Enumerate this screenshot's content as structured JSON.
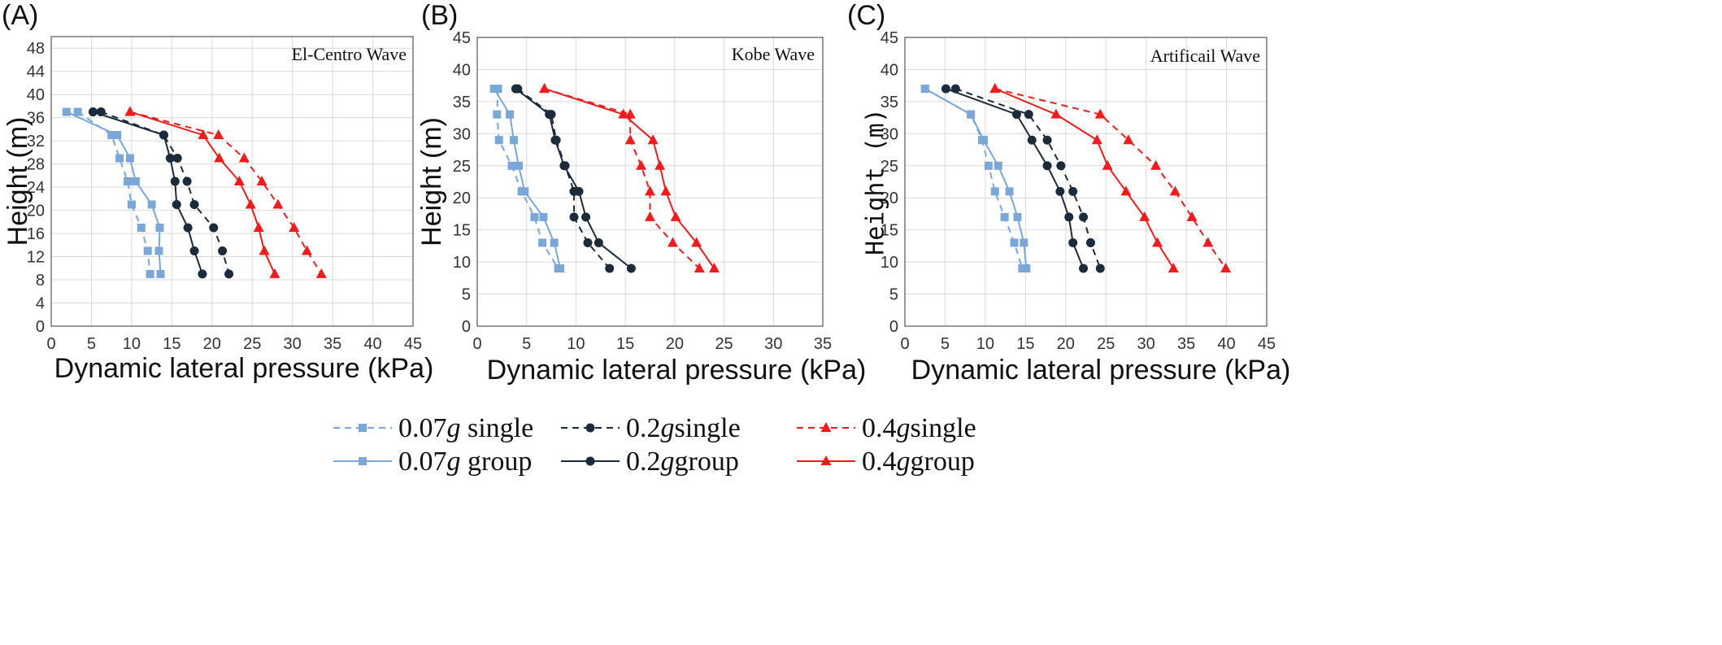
{
  "series_styles": [
    {
      "key": "s007_single",
      "color": "#7aa7d8",
      "dash": true,
      "marker": "square"
    },
    {
      "key": "s007_group",
      "color": "#7aa7d8",
      "dash": false,
      "marker": "square"
    },
    {
      "key": "s02_single",
      "color": "#1c2b3c",
      "dash": true,
      "marker": "circle"
    },
    {
      "key": "s02_group",
      "color": "#1c2b3c",
      "dash": false,
      "marker": "circle"
    },
    {
      "key": "s04_single",
      "color": "#ee1c1c",
      "dash": true,
      "marker": "triangle"
    },
    {
      "key": "s04_group",
      "color": "#ee1c1c",
      "dash": false,
      "marker": "triangle"
    }
  ],
  "legend": [
    {
      "key": "s007_single",
      "prefix": "0.07",
      "g": "g",
      "suffix": " single"
    },
    {
      "key": "s02_single",
      "prefix": "0.2",
      "g": "g",
      "suffix": "single"
    },
    {
      "key": "s04_single",
      "prefix": "0.4",
      "g": "g",
      "suffix": "single"
    },
    {
      "key": "s007_group",
      "prefix": "0.07",
      "g": "g",
      "suffix": " group"
    },
    {
      "key": "s02_group",
      "prefix": "0.2",
      "g": "g",
      "suffix": "group"
    },
    {
      "key": "s04_group",
      "prefix": "0.4",
      "g": "g",
      "suffix": "group"
    }
  ],
  "chart_data": [
    {
      "type": "line",
      "panel_label": "(A)",
      "title": "El-Centro Wave",
      "xlabel": "Dynamic lateral pressure (kPa)",
      "ylabel": "Height (m)",
      "xlim": [
        0,
        45
      ],
      "ylim": [
        0,
        50
      ],
      "xticks": [
        0,
        5,
        10,
        15,
        20,
        25,
        30,
        35,
        40,
        45
      ],
      "yticks": [
        0,
        4,
        8,
        12,
        16,
        20,
        24,
        28,
        32,
        36,
        40,
        44,
        48
      ],
      "grid": true,
      "series": [
        {
          "key": "s007_single",
          "x": [
            3.3,
            7.5,
            8.5,
            9.5,
            10,
            11.2,
            12,
            12.3
          ],
          "y": [
            37,
            33,
            29,
            25,
            21,
            17,
            13,
            9
          ]
        },
        {
          "key": "s007_group",
          "x": [
            1.9,
            8.2,
            9.8,
            10.5,
            12.5,
            13.5,
            13.4,
            13.6
          ],
          "y": [
            37,
            33,
            29,
            25,
            21,
            17,
            13,
            9
          ]
        },
        {
          "key": "s02_single",
          "x": [
            6.2,
            14,
            15.7,
            16.9,
            17.8,
            20.2,
            21.3,
            22.1
          ],
          "y": [
            37,
            33,
            29,
            25,
            21,
            17,
            13,
            9
          ]
        },
        {
          "key": "s02_group",
          "x": [
            5.2,
            14,
            14.8,
            15.4,
            15.6,
            17,
            17.8,
            18.8
          ],
          "y": [
            37,
            33,
            29,
            25,
            21,
            17,
            13,
            9
          ]
        },
        {
          "key": "s04_single",
          "x": [
            9.8,
            20.8,
            24,
            26.2,
            28.2,
            30.2,
            31.8,
            33.6
          ],
          "y": [
            37,
            33,
            29,
            25,
            21,
            17,
            13,
            9
          ]
        },
        {
          "key": "s04_group",
          "x": [
            9.8,
            18.9,
            20.9,
            23.4,
            24.8,
            25.8,
            26.5,
            27.8
          ],
          "y": [
            37,
            33,
            29,
            25,
            21,
            17,
            13,
            9
          ]
        }
      ]
    },
    {
      "type": "line",
      "panel_label": "(B)",
      "title": "Kobe Wave",
      "xlabel": "Dynamic lateral pressure (kPa)",
      "ylabel": "Height (m)",
      "xlim": [
        0,
        35
      ],
      "ylim": [
        0,
        45
      ],
      "xticks": [
        0,
        5,
        10,
        15,
        20,
        25,
        30,
        35
      ],
      "yticks": [
        0,
        5,
        10,
        15,
        20,
        25,
        30,
        35,
        40,
        45
      ],
      "grid": true,
      "series": [
        {
          "key": "s007_single",
          "x": [
            2.1,
            2,
            2.2,
            3.5,
            4.5,
            5.8,
            6.6,
            8.2
          ],
          "y": [
            37,
            33,
            29,
            25,
            21,
            17,
            13,
            9
          ]
        },
        {
          "key": "s007_group",
          "x": [
            1.7,
            3.3,
            3.7,
            4.2,
            4.8,
            6.7,
            7.8,
            8.4
          ],
          "y": [
            37,
            33,
            29,
            25,
            21,
            17,
            13,
            9
          ]
        },
        {
          "key": "s02_single",
          "x": [
            4.1,
            7.5,
            8,
            8.9,
            9.8,
            9.8,
            11.2,
            13.4
          ],
          "y": [
            37,
            33,
            29,
            25,
            21,
            17,
            13,
            9
          ]
        },
        {
          "key": "s02_group",
          "x": [
            3.9,
            7.3,
            7.9,
            8.8,
            10.3,
            11,
            12.3,
            15.6
          ],
          "y": [
            37,
            33,
            29,
            25,
            21,
            17,
            13,
            9
          ]
        },
        {
          "key": "s04_single",
          "x": [
            6.8,
            15.5,
            15.5,
            16.6,
            17.5,
            17.5,
            19.8,
            22.5
          ],
          "y": [
            37,
            33,
            29,
            25,
            21,
            17,
            13,
            9
          ]
        },
        {
          "key": "s04_group",
          "x": [
            6.8,
            14.8,
            17.8,
            18.5,
            19.1,
            20.1,
            22.2,
            24
          ],
          "y": [
            37,
            33,
            29,
            25,
            21,
            17,
            13,
            9
          ]
        }
      ]
    },
    {
      "type": "line",
      "panel_label": "(C)",
      "title": "Artificail Wave",
      "xlabel": "Dynamic lateral pressure (kPa)",
      "ylabel": "Height (m)",
      "xlim": [
        0,
        45
      ],
      "ylim": [
        0,
        45
      ],
      "xticks": [
        0,
        5,
        10,
        15,
        20,
        25,
        30,
        35,
        40,
        45
      ],
      "yticks": [
        0,
        5,
        10,
        15,
        20,
        25,
        30,
        35,
        40,
        45
      ],
      "grid": true,
      "series": [
        {
          "key": "s007_single",
          "x": [
            2.5,
            8.2,
            9.6,
            10.4,
            11.2,
            12.4,
            13.6,
            14.6
          ],
          "y": [
            37,
            33,
            29,
            25,
            21,
            17,
            13,
            9
          ]
        },
        {
          "key": "s007_group",
          "x": [
            2.5,
            8.2,
            9.8,
            11.6,
            13,
            14,
            14.8,
            15.1
          ],
          "y": [
            37,
            33,
            29,
            25,
            21,
            17,
            13,
            9
          ]
        },
        {
          "key": "s02_single",
          "x": [
            6.3,
            15.4,
            17.7,
            19.4,
            20.9,
            22.2,
            23.1,
            24.3
          ],
          "y": [
            37,
            33,
            29,
            25,
            21,
            17,
            13,
            9
          ]
        },
        {
          "key": "s02_group",
          "x": [
            5.1,
            13.9,
            15.8,
            17.7,
            19.3,
            20.4,
            20.9,
            22.2
          ],
          "y": [
            37,
            33,
            29,
            25,
            21,
            17,
            13,
            9
          ]
        },
        {
          "key": "s04_single",
          "x": [
            11.2,
            24.3,
            27.8,
            31.2,
            33.6,
            35.7,
            37.7,
            39.9
          ],
          "y": [
            37,
            33,
            29,
            25,
            21,
            17,
            13,
            9
          ]
        },
        {
          "key": "s04_group",
          "x": [
            11.2,
            18.8,
            23.9,
            25.2,
            27.5,
            29.8,
            31.4,
            33.4
          ],
          "y": [
            37,
            33,
            29,
            25,
            21,
            17,
            13,
            9
          ]
        }
      ]
    }
  ]
}
